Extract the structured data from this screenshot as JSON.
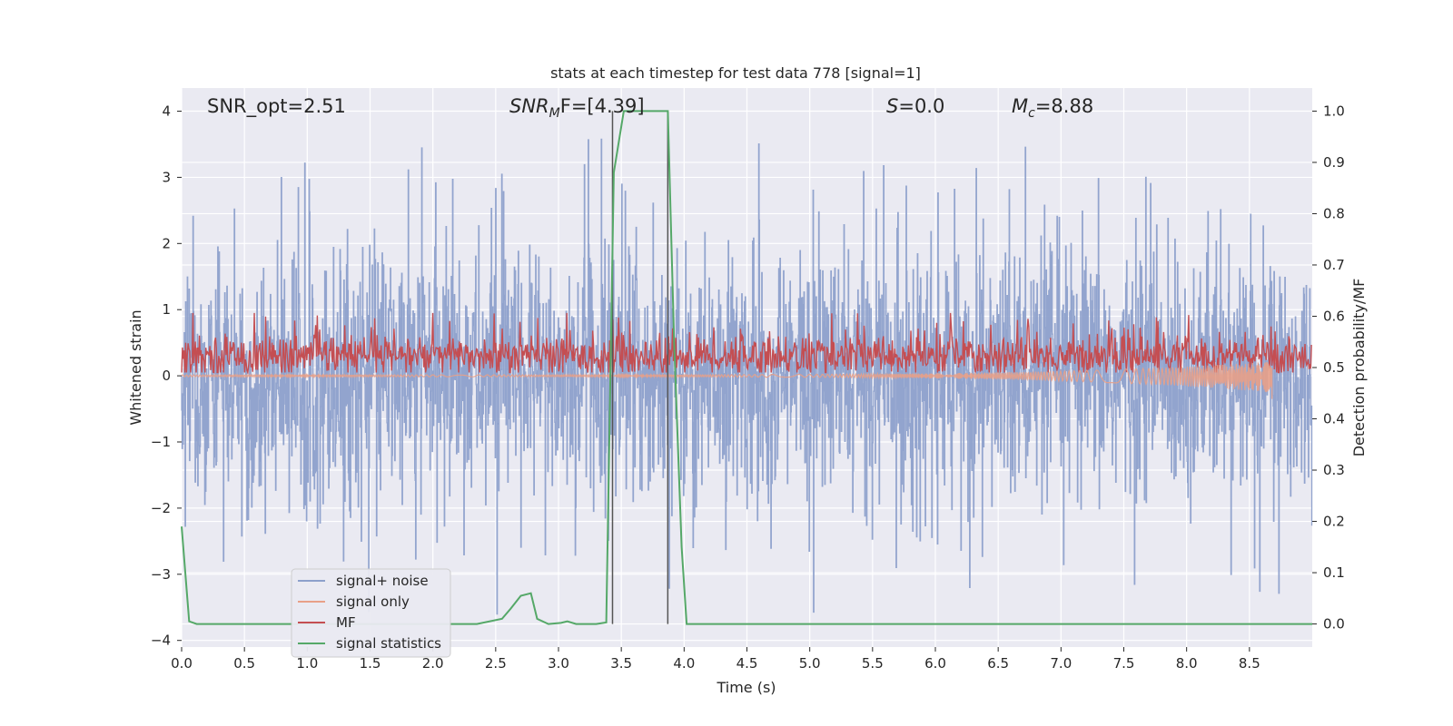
{
  "chart_data": {
    "type": "line",
    "title": "stats at each timestep for test data 778 [signal=1]",
    "xlabel": "Time (s)",
    "ylabel": "Whitened strain",
    "ylabel_right": "Detection probability/MF",
    "xlim": [
      0,
      9.0
    ],
    "ylim": [
      -4.1,
      4.35
    ],
    "ylim_right": [
      -0.045,
      1.045
    ],
    "x_ticks": [
      0.0,
      0.5,
      1.0,
      1.5,
      2.0,
      2.5,
      3.0,
      3.5,
      4.0,
      4.5,
      5.0,
      5.5,
      6.0,
      6.5,
      7.0,
      7.5,
      8.0,
      8.5
    ],
    "x_tick_labels": [
      "0.0",
      "0.5",
      "1.0",
      "1.5",
      "2.0",
      "2.5",
      "3.0",
      "3.5",
      "4.0",
      "4.5",
      "5.0",
      "5.5",
      "6.0",
      "6.5",
      "7.0",
      "7.5",
      "8.0",
      "8.5"
    ],
    "y_ticks": [
      -4,
      -3,
      -2,
      -1,
      0,
      1,
      2,
      3,
      4
    ],
    "y_tick_labels": [
      "−4",
      "−3",
      "−2",
      "−1",
      "0",
      "1",
      "2",
      "3",
      "4"
    ],
    "y_ticks_right": [
      0.0,
      0.1,
      0.2,
      0.3,
      0.4,
      0.5,
      0.6,
      0.7,
      0.8,
      0.9,
      1.0
    ],
    "y_tick_labels_right": [
      "0.0",
      "0.1",
      "0.2",
      "0.3",
      "0.4",
      "0.5",
      "0.6",
      "0.7",
      "0.8",
      "0.9",
      "1.0"
    ],
    "annotations": {
      "snr_opt": "SNR_opt=2.51",
      "snr_mf_sym": "SNR",
      "snr_mf_sub": "M",
      "snr_mf_rest": "F=[4.39]",
      "s_sym": "S",
      "s_rest": "=0.0",
      "mc_sym": "M",
      "mc_sub": "c",
      "mc_rest": "=8.88"
    },
    "legend_position": "lower-left",
    "series": [
      {
        "name": "signal+ noise",
        "color": "#8da0cb",
        "kind": "noise",
        "amplitude_sigma": 0.95,
        "peak_max": 4.0,
        "peak_min": -3.6
      },
      {
        "name": "signal only",
        "color": "#e8a088",
        "kind": "chirp",
        "end_time": 8.68,
        "end_amplitude": -0.35
      },
      {
        "name": "MF",
        "color": "#c44e52",
        "kind": "mf",
        "baseline": 0.3,
        "range": [
          0.05,
          0.95
        ]
      },
      {
        "name": "signal statistics",
        "color": "#55a868",
        "kind": "line",
        "axis": "right",
        "x": [
          0.0,
          0.06,
          0.12,
          2.35,
          2.55,
          2.62,
          2.7,
          2.78,
          2.83,
          2.92,
          3.02,
          3.07,
          3.14,
          3.3,
          3.38,
          3.44,
          3.52,
          3.87,
          3.92,
          3.98,
          4.02,
          9.0
        ],
        "y": [
          0.19,
          0.005,
          0.0,
          0.0,
          0.01,
          0.03,
          0.055,
          0.06,
          0.01,
          0.0,
          0.002,
          0.005,
          0.0,
          0.0,
          0.003,
          0.88,
          1.0,
          1.0,
          0.55,
          0.15,
          0.0,
          0.0
        ]
      }
    ],
    "vertical_lines": [
      3.43,
      3.87
    ]
  }
}
